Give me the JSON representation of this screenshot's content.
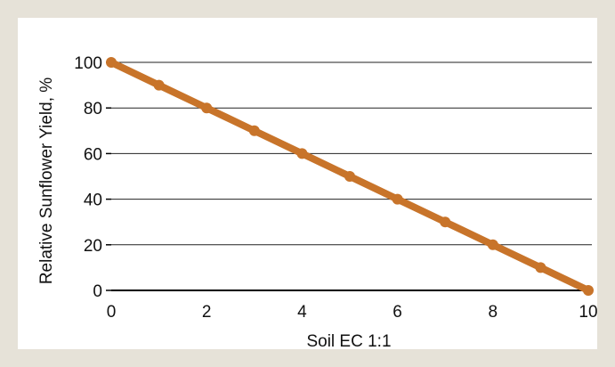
{
  "colors": {
    "frame": "#e6e2d8",
    "plot_background": "#ffffff",
    "gridline": "#222222",
    "series": "#c8742a"
  },
  "chart_data": {
    "type": "line",
    "title": "",
    "xlabel": "Soil EC 1:1",
    "ylabel": "Relative Sunflower Yield, %",
    "xlim": [
      0,
      10
    ],
    "ylim": [
      0,
      100
    ],
    "x_ticks": [
      0,
      2,
      4,
      6,
      8,
      10
    ],
    "y_ticks": [
      0,
      20,
      40,
      60,
      80,
      100
    ],
    "grid": "horizontal",
    "legend": "none",
    "series": [
      {
        "x": [
          0,
          1,
          2,
          3,
          4,
          5,
          6,
          7,
          8,
          9,
          10
        ],
        "values": [
          100,
          90,
          80,
          70,
          60,
          50,
          40,
          30,
          20,
          10,
          0
        ]
      }
    ]
  }
}
